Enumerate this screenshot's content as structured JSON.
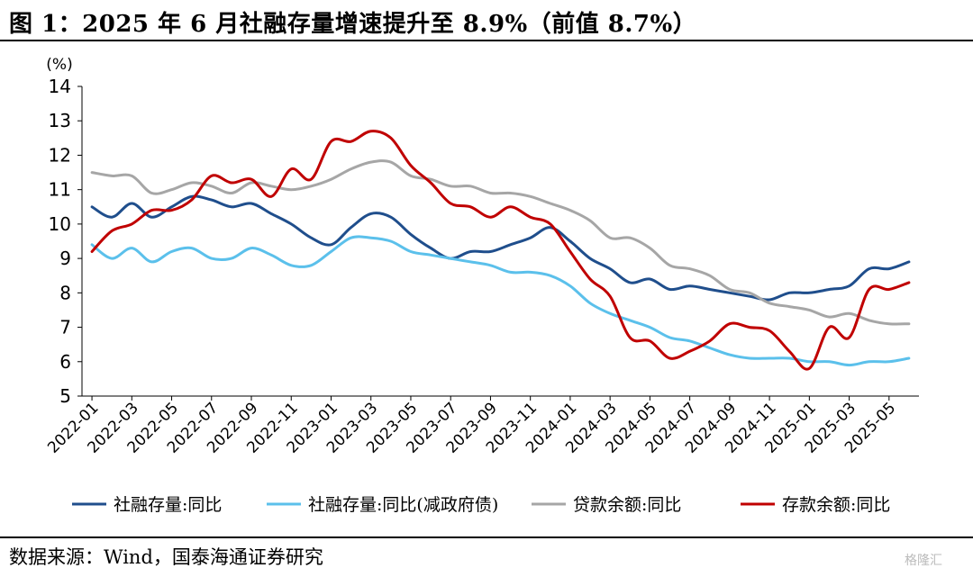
{
  "figure": {
    "title": "图 1：2025 年 6 月社融存量增速提升至 8.9%（前值 8.7%）",
    "source": "数据来源：Wind，国泰海通证券研究",
    "watermark": "格隆汇"
  },
  "chart_data": {
    "type": "line",
    "ylabel": "(%)",
    "ylim": [
      5,
      14
    ],
    "yticks": [
      5,
      6,
      7,
      8,
      9,
      10,
      11,
      12,
      13,
      14
    ],
    "grid": false,
    "legend_position": "bottom",
    "x": [
      "2022-01",
      "2022-02",
      "2022-03",
      "2022-04",
      "2022-05",
      "2022-06",
      "2022-07",
      "2022-08",
      "2022-09",
      "2022-10",
      "2022-11",
      "2022-12",
      "2023-01",
      "2023-02",
      "2023-03",
      "2023-04",
      "2023-05",
      "2023-06",
      "2023-07",
      "2023-08",
      "2023-09",
      "2023-10",
      "2023-11",
      "2023-12",
      "2024-01",
      "2024-02",
      "2024-03",
      "2024-04",
      "2024-05",
      "2024-06",
      "2024-07",
      "2024-08",
      "2024-09",
      "2024-10",
      "2024-11",
      "2024-12",
      "2025-01",
      "2025-02",
      "2025-03",
      "2025-04",
      "2025-05",
      "2025-06"
    ],
    "xticks": [
      "2022-01",
      "2022-03",
      "2022-05",
      "2022-07",
      "2022-09",
      "2022-11",
      "2023-01",
      "2023-03",
      "2023-05",
      "2023-07",
      "2023-09",
      "2023-11",
      "2024-01",
      "2024-03",
      "2024-05",
      "2024-07",
      "2024-09",
      "2024-11",
      "2025-01",
      "2025-03",
      "2025-05"
    ],
    "series": [
      {
        "name": "社融存量:同比",
        "color": "#1f4e8c",
        "values": [
          10.5,
          10.2,
          10.6,
          10.2,
          10.5,
          10.8,
          10.7,
          10.5,
          10.6,
          10.3,
          10.0,
          9.6,
          9.4,
          9.9,
          10.3,
          10.2,
          9.7,
          9.3,
          9.0,
          9.2,
          9.2,
          9.4,
          9.6,
          9.9,
          9.5,
          9.0,
          8.7,
          8.3,
          8.4,
          8.1,
          8.2,
          8.1,
          8.0,
          7.9,
          7.8,
          8.0,
          8.0,
          8.1,
          8.2,
          8.7,
          8.7,
          8.9
        ]
      },
      {
        "name": "社融存量:同比(减政府债)",
        "color": "#5bc0eb",
        "values": [
          9.4,
          9.0,
          9.3,
          8.9,
          9.2,
          9.3,
          9.0,
          9.0,
          9.3,
          9.1,
          8.8,
          8.8,
          9.2,
          9.6,
          9.6,
          9.5,
          9.2,
          9.1,
          9.0,
          8.9,
          8.8,
          8.6,
          8.6,
          8.5,
          8.2,
          7.7,
          7.4,
          7.2,
          7.0,
          6.7,
          6.6,
          6.4,
          6.2,
          6.1,
          6.1,
          6.1,
          6.0,
          6.0,
          5.9,
          6.0,
          6.0,
          6.1
        ]
      },
      {
        "name": "贷款余额:同比",
        "color": "#a6a6a6",
        "values": [
          11.5,
          11.4,
          11.4,
          10.9,
          11.0,
          11.2,
          11.1,
          10.9,
          11.2,
          11.1,
          11.0,
          11.1,
          11.3,
          11.6,
          11.8,
          11.8,
          11.4,
          11.3,
          11.1,
          11.1,
          10.9,
          10.9,
          10.8,
          10.6,
          10.4,
          10.1,
          9.6,
          9.6,
          9.3,
          8.8,
          8.7,
          8.5,
          8.1,
          8.0,
          7.7,
          7.6,
          7.5,
          7.3,
          7.4,
          7.2,
          7.1,
          7.1
        ]
      },
      {
        "name": "存款余额:同比",
        "color": "#c00000",
        "values": [
          9.2,
          9.8,
          10.0,
          10.4,
          10.4,
          10.7,
          11.4,
          11.2,
          11.3,
          10.8,
          11.6,
          11.3,
          12.4,
          12.4,
          12.7,
          12.5,
          11.7,
          11.2,
          10.6,
          10.5,
          10.2,
          10.5,
          10.2,
          10.0,
          9.2,
          8.4,
          7.9,
          6.7,
          6.6,
          6.1,
          6.3,
          6.6,
          7.1,
          7.0,
          6.9,
          6.3,
          5.8,
          7.0,
          6.7,
          8.1,
          8.1,
          8.3
        ]
      }
    ]
  }
}
